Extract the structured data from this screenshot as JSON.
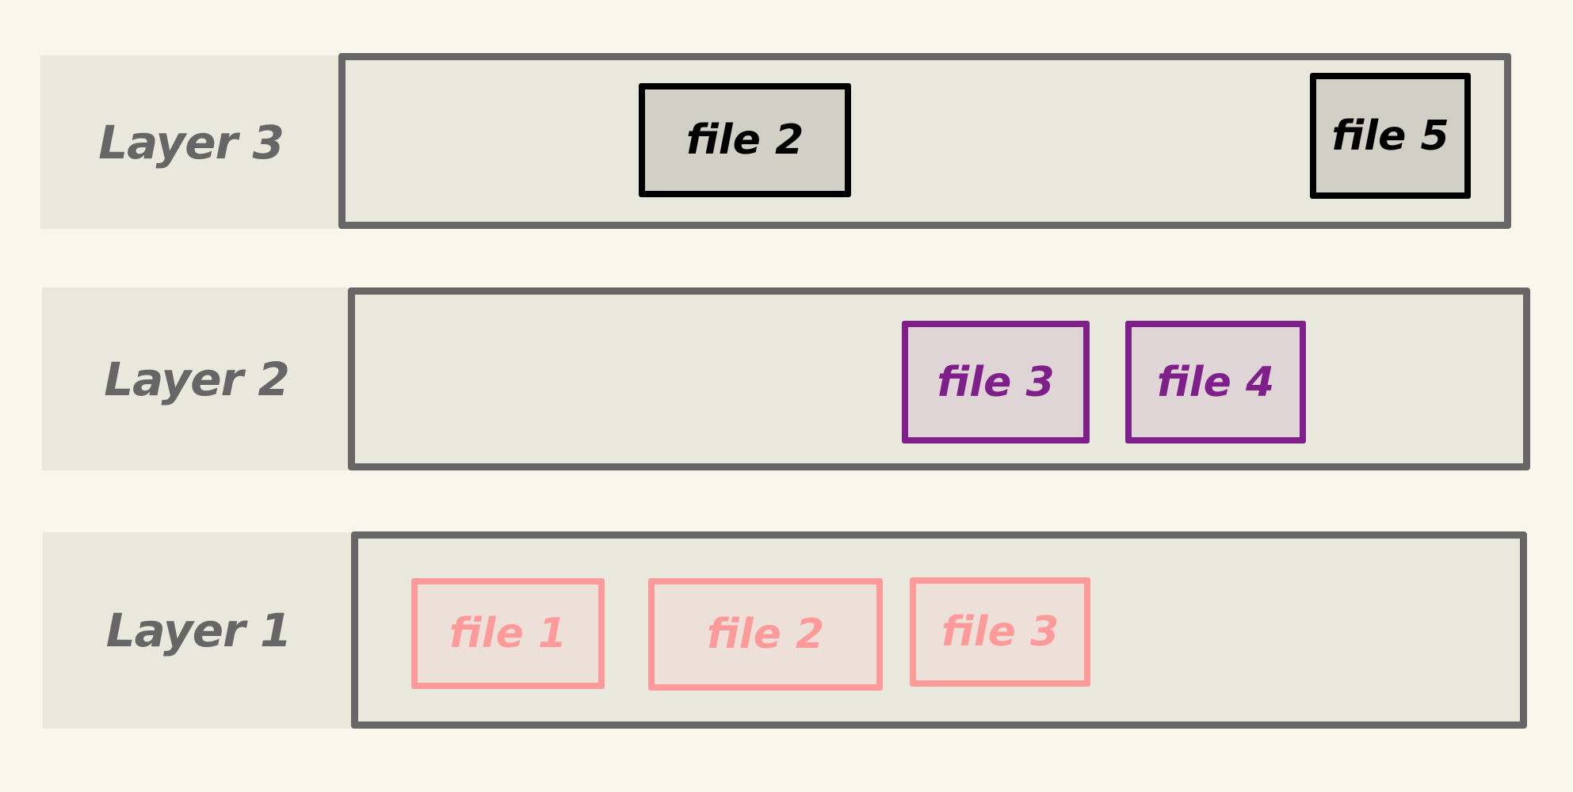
{
  "colors": {
    "background": "#f9f7eb",
    "panel": "#e8e8dc",
    "frame": "#666666",
    "layer3_files": "#000000",
    "layer2_files": "#7f1f8a",
    "layer1_files": "#ff9a9a"
  },
  "layers": [
    {
      "label": "Layer 3",
      "files": [
        "file 2",
        "file 5"
      ]
    },
    {
      "label": "Layer 2",
      "files": [
        "file 3",
        "file 4"
      ]
    },
    {
      "label": "Layer 1",
      "files": [
        "file 1",
        "file 2",
        "file 3"
      ]
    }
  ]
}
